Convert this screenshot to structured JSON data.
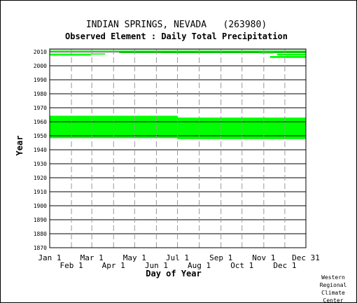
{
  "chart_data": {
    "type": "heatmap",
    "title": "INDIAN SPRINGS, NEVADA   (263980)",
    "subtitle": "Observed Element : Daily Total Precipitation",
    "xlabel": "Day of Year",
    "ylabel": "Year",
    "x_range_day_of_year": [
      1,
      366
    ],
    "ylim": [
      1870,
      2012
    ],
    "y_ticks": [
      1870,
      1880,
      1890,
      1900,
      1910,
      1920,
      1930,
      1940,
      1950,
      1960,
      1970,
      1980,
      1990,
      2000,
      2010
    ],
    "x_ticks_top_row": [
      {
        "label": "Jan 1",
        "day": 1
      },
      {
        "label": "Mar 1",
        "day": 61
      },
      {
        "label": "May 1",
        "day": 122
      },
      {
        "label": "Jul 1",
        "day": 183
      },
      {
        "label": "Sep 1",
        "day": 245
      },
      {
        "label": "Nov 1",
        "day": 306
      },
      {
        "label": "Dec 31",
        "day": 366
      }
    ],
    "x_ticks_bottom_row": [
      {
        "label": "Feb 1",
        "day": 32
      },
      {
        "label": "Apr 1",
        "day": 92
      },
      {
        "label": "Jun 1",
        "day": 153
      },
      {
        "label": "Aug 1",
        "day": 214
      },
      {
        "label": "Oct 1",
        "day": 275
      },
      {
        "label": "Dec 1",
        "day": 336
      }
    ],
    "grid": true,
    "data_color": "#00ff00",
    "observed_periods": [
      {
        "start_day": 1,
        "end_day": 183,
        "start_year": 1948.3,
        "end_year": 1964.3
      },
      {
        "start_day": 183,
        "end_day": 366,
        "start_year": 1947.6,
        "end_year": 1963.0
      },
      {
        "start_day": 1,
        "end_day": 60,
        "start_year": 2007.3,
        "end_year": 2008.7
      },
      {
        "start_day": 60,
        "end_day": 80,
        "start_year": 2008.0,
        "end_year": 2008.8
      },
      {
        "start_day": 100,
        "end_day": 160,
        "start_year": 2009.1,
        "end_year": 2010.0
      },
      {
        "start_day": 160,
        "end_day": 300,
        "start_year": 2009.0,
        "end_year": 2010.0
      },
      {
        "start_day": 300,
        "end_day": 320,
        "start_year": 2008.8,
        "end_year": 2009.6
      },
      {
        "start_day": 320,
        "end_day": 366,
        "start_year": 2009.1,
        "end_year": 2010.0
      },
      {
        "start_day": 315,
        "end_day": 366,
        "start_year": 2005.6,
        "end_year": 2007.0
      },
      {
        "start_day": 325,
        "end_day": 366,
        "start_year": 2007.4,
        "end_year": 2008.6
      },
      {
        "start_day": 1,
        "end_day": 366,
        "start_year": 2011.0,
        "end_year": 2011.4
      }
    ]
  },
  "credit": [
    "Western",
    "Regional",
    "Climate",
    "Center"
  ]
}
